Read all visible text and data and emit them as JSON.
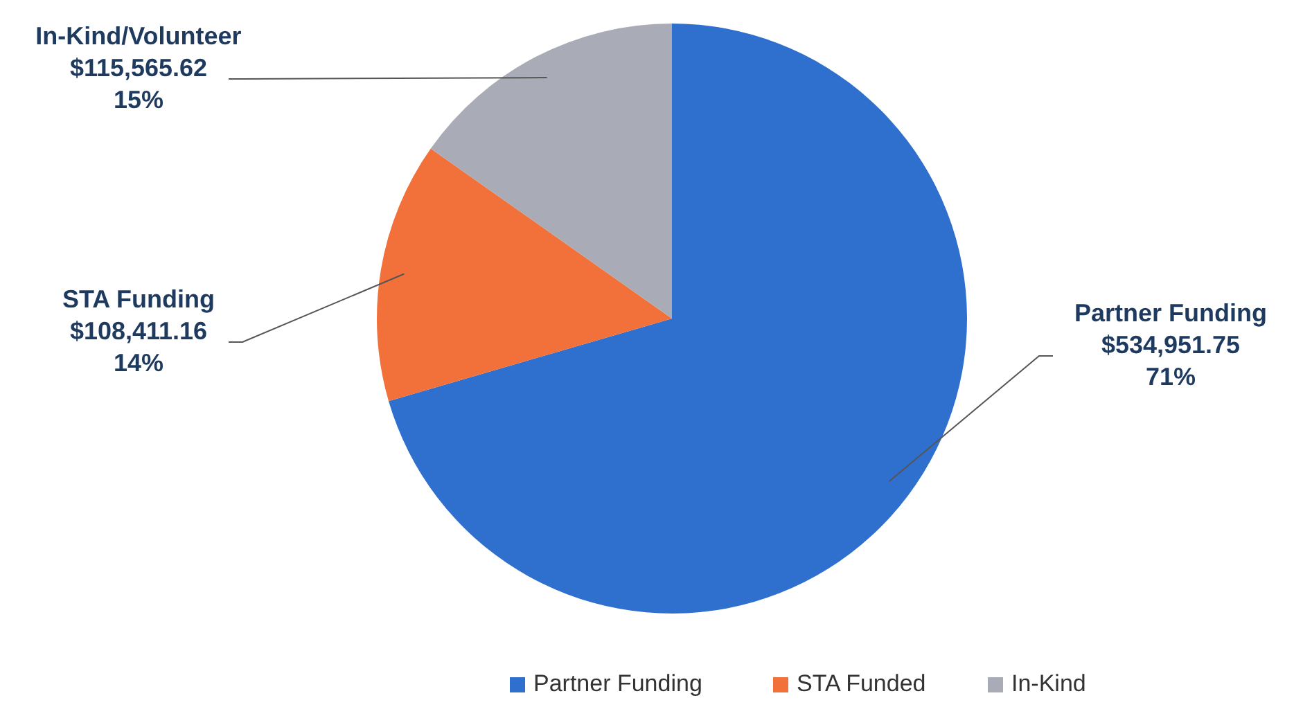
{
  "chart_data": {
    "type": "pie",
    "categories": [
      "Partner Funding",
      "STA Funded",
      "In-Kind"
    ],
    "values": [
      534951.75,
      108411.16,
      115565.62
    ],
    "colors": [
      "#2f6fce",
      "#f2703a",
      "#a9abb6"
    ],
    "value_labels": [
      "Partner Funding\n$534,951.75\n71%",
      "STA Funding\n$108,411.16\n14%",
      "In-Kind/Volunteer\n$115,565.62\n15%"
    ],
    "legend": "bottom"
  }
}
